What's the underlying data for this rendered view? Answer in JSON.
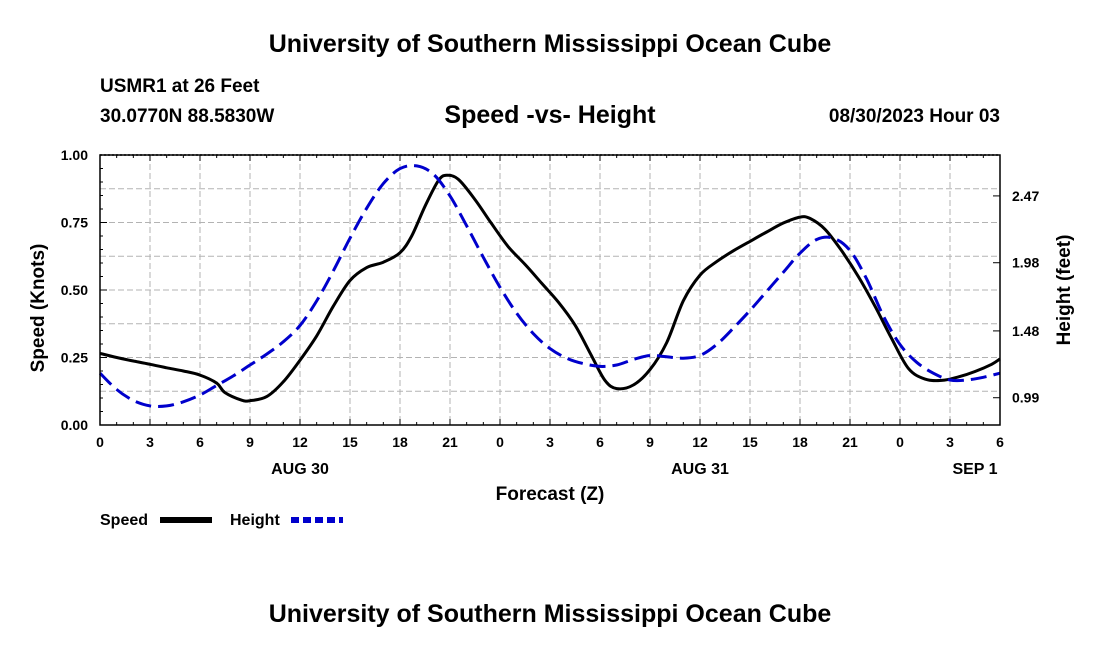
{
  "page": {
    "title_top": "University of Southern Mississippi Ocean Cube",
    "title_bottom": "University of Southern Mississippi Ocean Cube",
    "station": "USMR1 at 26 Feet",
    "coords": "30.0770N  88.5830W",
    "subtitle": "Speed -vs- Height",
    "datetime": "08/30/2023 Hour 03"
  },
  "chart_data": {
    "type": "line",
    "xlabel": "Forecast (Z)",
    "ylabel_left": "Speed (Knots)",
    "ylabel_right": "Height (feet)",
    "x_range_hours": [
      0,
      54
    ],
    "x_ticks": [
      {
        "h": 0,
        "label": "0"
      },
      {
        "h": 3,
        "label": "3"
      },
      {
        "h": 6,
        "label": "6"
      },
      {
        "h": 9,
        "label": "9"
      },
      {
        "h": 12,
        "label": "12"
      },
      {
        "h": 15,
        "label": "15"
      },
      {
        "h": 18,
        "label": "18"
      },
      {
        "h": 21,
        "label": "21"
      },
      {
        "h": 24,
        "label": "0"
      },
      {
        "h": 27,
        "label": "3"
      },
      {
        "h": 30,
        "label": "6"
      },
      {
        "h": 33,
        "label": "9"
      },
      {
        "h": 36,
        "label": "12"
      },
      {
        "h": 39,
        "label": "15"
      },
      {
        "h": 42,
        "label": "18"
      },
      {
        "h": 45,
        "label": "21"
      },
      {
        "h": 48,
        "label": "0"
      },
      {
        "h": 51,
        "label": "3"
      },
      {
        "h": 54,
        "label": "6"
      }
    ],
    "date_labels": [
      {
        "h": 12,
        "label": "AUG 30"
      },
      {
        "h": 36,
        "label": "AUG 31"
      },
      {
        "h": 52.5,
        "label": "SEP 1"
      }
    ],
    "y_left": {
      "range": [
        0,
        1
      ],
      "ticks": [
        {
          "v": 0,
          "label": "0.00"
        },
        {
          "v": 0.25,
          "label": "0.25"
        },
        {
          "v": 0.5,
          "label": "0.50"
        },
        {
          "v": 0.75,
          "label": "0.75"
        },
        {
          "v": 1,
          "label": "1.00"
        }
      ]
    },
    "y_right": {
      "range": [
        0.79,
        2.77
      ],
      "ticks": [
        {
          "v": 0.99,
          "label": "0.99"
        },
        {
          "v": 1.48,
          "label": "1.48"
        },
        {
          "v": 1.98,
          "label": "1.98"
        },
        {
          "v": 2.47,
          "label": "2.47"
        }
      ]
    },
    "series": [
      {
        "name": "Speed",
        "axis": "left",
        "color": "#000000",
        "dash": "",
        "points": [
          [
            0,
            0.265
          ],
          [
            1,
            0.25
          ],
          [
            2,
            0.237
          ],
          [
            3,
            0.225
          ],
          [
            4,
            0.212
          ],
          [
            5,
            0.2
          ],
          [
            6,
            0.185
          ],
          [
            7,
            0.155
          ],
          [
            7.5,
            0.12
          ],
          [
            8.5,
            0.092
          ],
          [
            9,
            0.09
          ],
          [
            10,
            0.105
          ],
          [
            11,
            0.16
          ],
          [
            12,
            0.24
          ],
          [
            13,
            0.33
          ],
          [
            14,
            0.44
          ],
          [
            15,
            0.535
          ],
          [
            16,
            0.583
          ],
          [
            17,
            0.603
          ],
          [
            18,
            0.638
          ],
          [
            18.7,
            0.7
          ],
          [
            19.5,
            0.81
          ],
          [
            20.3,
            0.905
          ],
          [
            20.8,
            0.925
          ],
          [
            21.5,
            0.91
          ],
          [
            22.5,
            0.835
          ],
          [
            23.5,
            0.745
          ],
          [
            24.5,
            0.66
          ],
          [
            25.5,
            0.595
          ],
          [
            26.5,
            0.525
          ],
          [
            27.5,
            0.455
          ],
          [
            28.5,
            0.37
          ],
          [
            29.5,
            0.255
          ],
          [
            30.3,
            0.165
          ],
          [
            31,
            0.135
          ],
          [
            32,
            0.148
          ],
          [
            33,
            0.205
          ],
          [
            34,
            0.305
          ],
          [
            35,
            0.46
          ],
          [
            36,
            0.555
          ],
          [
            37,
            0.605
          ],
          [
            38,
            0.645
          ],
          [
            39,
            0.68
          ],
          [
            40,
            0.715
          ],
          [
            41,
            0.748
          ],
          [
            42,
            0.77
          ],
          [
            42.6,
            0.765
          ],
          [
            43.5,
            0.725
          ],
          [
            44.5,
            0.645
          ],
          [
            45.5,
            0.55
          ],
          [
            46.5,
            0.44
          ],
          [
            47.5,
            0.32
          ],
          [
            48.5,
            0.21
          ],
          [
            49.5,
            0.17
          ],
          [
            50.5,
            0.165
          ],
          [
            51.5,
            0.178
          ],
          [
            52.5,
            0.198
          ],
          [
            53.5,
            0.225
          ],
          [
            54,
            0.245
          ]
        ]
      },
      {
        "name": "Height",
        "axis": "right",
        "color": "#0000cc",
        "dash": "16 7",
        "points": [
          [
            0,
            1.17
          ],
          [
            1,
            1.05
          ],
          [
            2,
            0.97
          ],
          [
            3,
            0.93
          ],
          [
            4,
            0.93
          ],
          [
            5,
            0.96
          ],
          [
            6,
            1.01
          ],
          [
            7,
            1.08
          ],
          [
            8,
            1.15
          ],
          [
            9,
            1.23
          ],
          [
            10,
            1.31
          ],
          [
            11,
            1.4
          ],
          [
            12,
            1.52
          ],
          [
            13,
            1.7
          ],
          [
            14,
            1.92
          ],
          [
            15,
            2.16
          ],
          [
            16,
            2.38
          ],
          [
            17,
            2.56
          ],
          [
            18,
            2.67
          ],
          [
            19,
            2.69
          ],
          [
            20,
            2.63
          ],
          [
            21,
            2.47
          ],
          [
            22,
            2.25
          ],
          [
            23,
            2.02
          ],
          [
            24,
            1.8
          ],
          [
            25,
            1.61
          ],
          [
            26,
            1.46
          ],
          [
            27,
            1.35
          ],
          [
            28,
            1.28
          ],
          [
            29,
            1.24
          ],
          [
            30,
            1.22
          ],
          [
            31,
            1.23
          ],
          [
            32,
            1.27
          ],
          [
            33,
            1.3
          ],
          [
            34,
            1.29
          ],
          [
            35,
            1.28
          ],
          [
            36,
            1.3
          ],
          [
            37,
            1.38
          ],
          [
            38,
            1.5
          ],
          [
            39,
            1.63
          ],
          [
            40,
            1.77
          ],
          [
            41,
            1.91
          ],
          [
            42,
            2.05
          ],
          [
            43,
            2.15
          ],
          [
            44,
            2.16
          ],
          [
            45,
            2.07
          ],
          [
            46,
            1.86
          ],
          [
            47,
            1.59
          ],
          [
            48,
            1.38
          ],
          [
            49,
            1.25
          ],
          [
            50,
            1.17
          ],
          [
            51,
            1.12
          ],
          [
            52,
            1.12
          ],
          [
            53,
            1.14
          ],
          [
            54,
            1.17
          ]
        ]
      }
    ],
    "legend": [
      {
        "label": "Speed",
        "color": "#000000",
        "dash": ""
      },
      {
        "label": "Height",
        "color": "#0000cc",
        "dash": "8 4"
      }
    ]
  }
}
